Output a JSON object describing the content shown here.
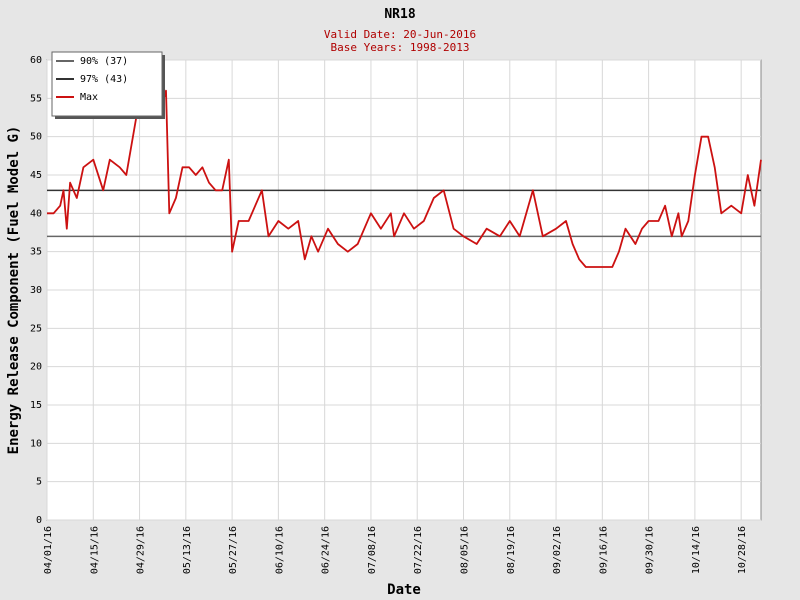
{
  "chart_data": {
    "type": "line",
    "title": "NR18",
    "subtitle_lines": [
      "Valid Date: 20-Jun-2016",
      "Base Years: 1998-2013"
    ],
    "xlabel": "Date",
    "ylabel": "Energy Release Component (Fuel Model G)",
    "ylim": [
      0,
      60
    ],
    "yticks": [
      0,
      5,
      10,
      15,
      20,
      25,
      30,
      35,
      40,
      45,
      50,
      55,
      60
    ],
    "xlim": [
      "2016-04-01",
      "2016-11-03"
    ],
    "xtick_labels": [
      "04/01/16",
      "04/15/16",
      "04/29/16",
      "05/13/16",
      "05/27/16",
      "06/10/16",
      "06/24/16",
      "07/08/16",
      "07/22/16",
      "08/05/16",
      "08/19/16",
      "09/02/16",
      "09/16/16",
      "09/30/16",
      "10/14/16",
      "10/28/16"
    ],
    "grid": true,
    "legend_position": "top-left",
    "reference_lines": [
      {
        "name": "90% (37)",
        "value": 37,
        "color": "#666666"
      },
      {
        "name": "97% (43)",
        "value": 43,
        "color": "#333333"
      }
    ],
    "series": [
      {
        "name": "Max",
        "color": "#cc1111",
        "x": [
          "2016-04-01",
          "2016-04-03",
          "2016-04-05",
          "2016-04-06",
          "2016-04-07",
          "2016-04-08",
          "2016-04-10",
          "2016-04-12",
          "2016-04-15",
          "2016-04-18",
          "2016-04-20",
          "2016-04-23",
          "2016-04-25",
          "2016-05-01",
          "2016-05-03",
          "2016-05-05",
          "2016-05-07",
          "2016-05-08",
          "2016-05-10",
          "2016-05-12",
          "2016-05-14",
          "2016-05-16",
          "2016-05-18",
          "2016-05-20",
          "2016-05-22",
          "2016-05-24",
          "2016-05-26",
          "2016-05-27",
          "2016-05-29",
          "2016-06-01",
          "2016-06-05",
          "2016-06-07",
          "2016-06-10",
          "2016-06-13",
          "2016-06-16",
          "2016-06-18",
          "2016-06-20",
          "2016-06-22",
          "2016-06-25",
          "2016-06-28",
          "2016-07-01",
          "2016-07-04",
          "2016-07-08",
          "2016-07-11",
          "2016-07-14",
          "2016-07-15",
          "2016-07-18",
          "2016-07-21",
          "2016-07-24",
          "2016-07-27",
          "2016-07-30",
          "2016-08-02",
          "2016-08-05",
          "2016-08-09",
          "2016-08-12",
          "2016-08-16",
          "2016-08-19",
          "2016-08-22",
          "2016-08-26",
          "2016-08-29",
          "2016-09-02",
          "2016-09-05",
          "2016-09-07",
          "2016-09-09",
          "2016-09-11",
          "2016-09-14",
          "2016-09-17",
          "2016-09-19",
          "2016-09-21",
          "2016-09-23",
          "2016-09-26",
          "2016-09-28",
          "2016-09-30",
          "2016-10-02",
          "2016-10-03",
          "2016-10-05",
          "2016-10-07",
          "2016-10-09",
          "2016-10-10",
          "2016-10-12",
          "2016-10-14",
          "2016-10-16",
          "2016-10-18",
          "2016-10-20",
          "2016-10-22",
          "2016-10-25",
          "2016-10-28",
          "2016-10-30",
          "2016-11-01",
          "2016-11-03"
        ],
        "y": [
          40,
          40,
          41,
          43,
          38,
          44,
          42,
          46,
          47,
          43,
          47,
          46,
          45,
          60,
          56,
          53,
          56,
          40,
          42,
          46,
          46,
          45,
          46,
          44,
          43,
          43,
          47,
          35,
          39,
          39,
          43,
          37,
          39,
          38,
          39,
          34,
          37,
          35,
          38,
          36,
          35,
          36,
          40,
          38,
          40,
          37,
          40,
          38,
          39,
          42,
          43,
          38,
          37,
          36,
          38,
          37,
          39,
          37,
          43,
          37,
          38,
          39,
          36,
          34,
          33,
          33,
          33,
          33,
          35,
          38,
          36,
          38,
          39,
          39,
          39,
          41,
          37,
          40,
          37,
          39,
          45,
          50,
          50,
          46,
          40,
          41,
          40,
          45,
          41,
          47
        ],
        "note": "trimmed"
      }
    ]
  }
}
